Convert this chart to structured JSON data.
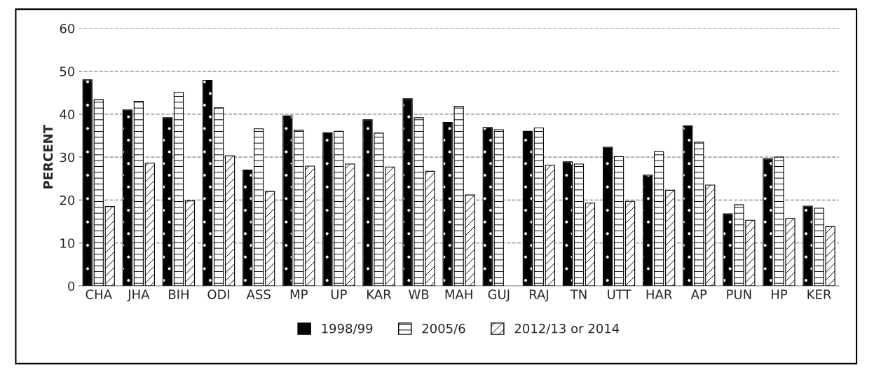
{
  "chart_data": {
    "type": "bar",
    "ylabel": "PERCENT",
    "categories": [
      "CHA",
      "JHA",
      "BIH",
      "ODI",
      "ASS",
      "MP",
      "UP",
      "KAR",
      "WB",
      "MAH",
      "GUJ",
      "RAJ",
      "TN",
      "UTT",
      "HAR",
      "AP",
      "PUN",
      "HP",
      "KER"
    ],
    "series": [
      {
        "name": "1998/99",
        "color": "#000000",
        "values": [
          48,
          41,
          39.2,
          47.9,
          27,
          39.6,
          35.7,
          38.7,
          43.6,
          38.1,
          36.9,
          36,
          28.9,
          32.3,
          25.8,
          37.3,
          16.8,
          29.6,
          18.6
        ]
      },
      {
        "name": "2005/6",
        "color": "#ffffff",
        "values": [
          43.4,
          43,
          45.1,
          41.5,
          36.6,
          36.3,
          36,
          35.6,
          39.2,
          41.8,
          36.4,
          36.8,
          28.4,
          30.1,
          31.3,
          33.5,
          18.9,
          30,
          18.1
        ]
      },
      {
        "name": "2012/13 or 2014",
        "color": "#ffffff",
        "values": [
          18.5,
          28.6,
          19.8,
          30.3,
          22,
          27.9,
          28.4,
          27.7,
          26.7,
          21.2,
          null,
          28.1,
          19.3,
          19.7,
          22.3,
          23.5,
          15.3,
          15.7,
          13.8
        ]
      }
    ],
    "ylim": [
      0,
      60
    ],
    "yticks": [
      0,
      10,
      20,
      30,
      40,
      50,
      60
    ],
    "grid": "y",
    "legend": "bottom"
  }
}
